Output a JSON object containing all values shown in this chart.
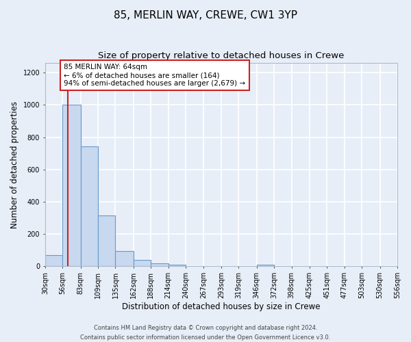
{
  "title": "85, MERLIN WAY, CREWE, CW1 3YP",
  "subtitle": "Size of property relative to detached houses in Crewe",
  "xlabel": "Distribution of detached houses by size in Crewe",
  "ylabel": "Number of detached properties",
  "bar_edges": [
    30,
    56,
    83,
    109,
    135,
    162,
    188,
    214,
    240,
    267,
    293,
    319,
    346,
    372,
    398,
    425,
    451,
    477,
    503,
    530,
    556
  ],
  "bar_heights": [
    70,
    1000,
    745,
    315,
    95,
    38,
    18,
    10,
    0,
    0,
    0,
    0,
    10,
    0,
    0,
    0,
    0,
    0,
    0,
    0
  ],
  "bar_color": "#c8d8ee",
  "bar_edge_color": "#6699cc",
  "property_line_x": 64,
  "property_line_color": "#cc2222",
  "annotation_line1": "85 MERLIN WAY: 64sqm",
  "annotation_line2": "← 6% of detached houses are smaller (164)",
  "annotation_line3": "94% of semi-detached houses are larger (2,679) →",
  "annotation_box_color": "#cc2222",
  "ylim": [
    0,
    1260
  ],
  "yticks": [
    0,
    200,
    400,
    600,
    800,
    1000,
    1200
  ],
  "tick_labels": [
    "30sqm",
    "56sqm",
    "83sqm",
    "109sqm",
    "135sqm",
    "162sqm",
    "188sqm",
    "214sqm",
    "240sqm",
    "267sqm",
    "293sqm",
    "319sqm",
    "346sqm",
    "372sqm",
    "398sqm",
    "425sqm",
    "451sqm",
    "477sqm",
    "503sqm",
    "530sqm",
    "556sqm"
  ],
  "footer_line1": "Contains HM Land Registry data © Crown copyright and database right 2024.",
  "footer_line2": "Contains public sector information licensed under the Open Government Licence v3.0.",
  "background_color": "#e8eef8",
  "plot_bg_color": "#e8eef8",
  "grid_color": "#ffffff",
  "title_fontsize": 11,
  "subtitle_fontsize": 9.5,
  "axis_label_fontsize": 8.5,
  "tick_fontsize": 7,
  "footer_fontsize": 6
}
